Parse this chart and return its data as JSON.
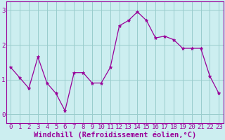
{
  "x_values": [
    0,
    1,
    2,
    3,
    4,
    5,
    6,
    7,
    8,
    9,
    10,
    11,
    12,
    13,
    14,
    15,
    16,
    17,
    18,
    19,
    20,
    21,
    22,
    23
  ],
  "y_values": [
    1.35,
    1.05,
    0.75,
    1.65,
    0.9,
    0.6,
    0.1,
    1.2,
    1.2,
    0.9,
    0.9,
    1.35,
    2.55,
    2.7,
    2.95,
    2.7,
    2.2,
    2.25,
    2.15,
    1.9,
    1.9,
    1.9,
    1.1,
    0.6
  ],
  "line_color": "#990099",
  "marker": "*",
  "marker_size": 3.5,
  "bg_color": "#cceef0",
  "grid_color": "#99cccc",
  "xlabel": "Windchill (Refroidissement éolien,°C)",
  "xlabel_fontsize": 7.5,
  "tick_fontsize": 6.5,
  "xlim": [
    -0.5,
    23.5
  ],
  "ylim": [
    -0.25,
    3.25
  ],
  "yticks": [
    0,
    1,
    2,
    3
  ],
  "xticks": [
    0,
    1,
    2,
    3,
    4,
    5,
    6,
    7,
    8,
    9,
    10,
    11,
    12,
    13,
    14,
    15,
    16,
    17,
    18,
    19,
    20,
    21,
    22,
    23
  ]
}
